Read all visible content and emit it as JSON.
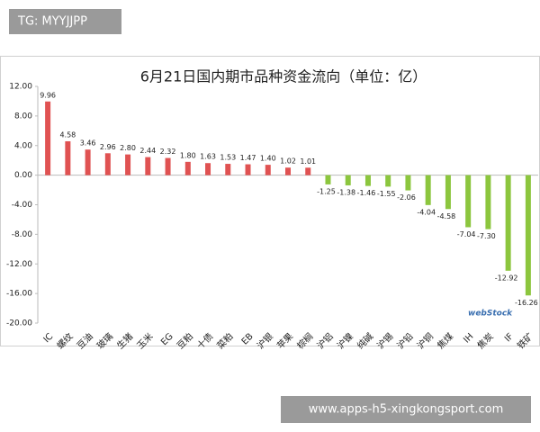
{
  "header": {
    "badge": "TG: MYYJJPP"
  },
  "footer": {
    "url": "www.apps-h5-xingkongsport.com"
  },
  "chart_data": {
    "type": "bar",
    "title": "6月21日国内期市品种资金流向（单位：亿）",
    "categories": [
      "IC",
      "螺纹",
      "豆油",
      "玻璃",
      "生猪",
      "玉米",
      "EG",
      "豆粕",
      "十债",
      "菜粕",
      "EB",
      "沪银",
      "苹果",
      "棕榈",
      "沪铝",
      "沪镍",
      "纯碱",
      "沪锡",
      "沪铅",
      "沪铜",
      "焦煤",
      "IH",
      "焦炭",
      "IF",
      "铁矿"
    ],
    "values": [
      9.96,
      4.58,
      3.46,
      2.96,
      2.8,
      2.44,
      2.32,
      1.8,
      1.63,
      1.53,
      1.47,
      1.4,
      1.02,
      1.01,
      -1.25,
      -1.38,
      -1.46,
      -1.55,
      -2.06,
      -4.04,
      -4.58,
      -7.04,
      -7.3,
      -12.92,
      -16.26
    ],
    "value_labels": [
      "9.96",
      "4.58",
      "3.46",
      "2.96",
      "2.80",
      "2.44",
      "2.32",
      "1.80",
      "1.63",
      "1.53",
      "1.47",
      "1.40",
      "1.02",
      "1.01",
      "-1.25",
      "-1.38",
      "-1.46",
      "-1.55",
      "-2.06",
      "-4.04",
      "-4.58",
      "-7.04",
      "-7.30",
      "-12.92",
      "-16.26"
    ],
    "positive_color": "#e05252",
    "negative_color": "#8cc63e",
    "ylim": [
      -20,
      12
    ],
    "yticks": [
      {
        "value": 12,
        "label": "12.00"
      },
      {
        "value": 8,
        "label": "8.00"
      },
      {
        "value": 4,
        "label": "4.00"
      },
      {
        "value": 0,
        "label": "0.00"
      },
      {
        "value": -4,
        "label": "-4.00"
      },
      {
        "value": -8,
        "label": "-8.00"
      },
      {
        "value": -12,
        "label": "-12.00"
      },
      {
        "value": -16,
        "label": "-16.00"
      },
      {
        "value": -20,
        "label": "-20.00"
      }
    ],
    "grid": false,
    "watermark": "webStock"
  }
}
